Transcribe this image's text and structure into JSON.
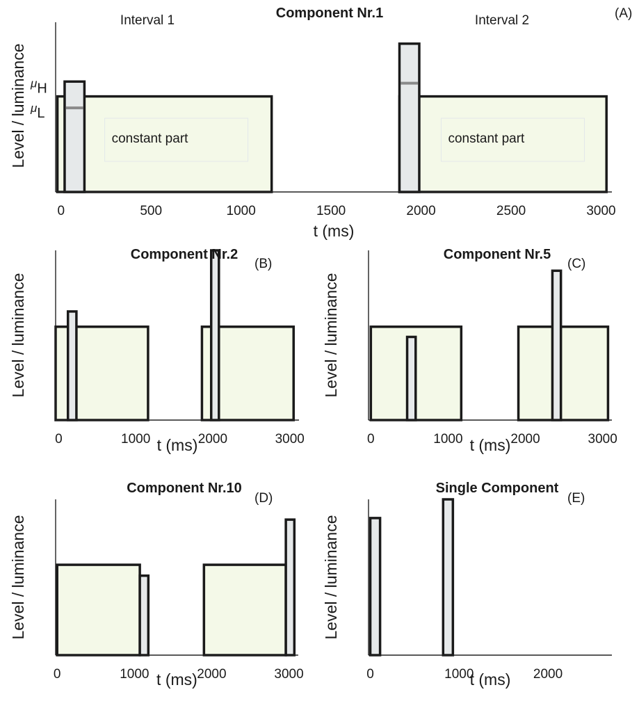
{
  "chart_data": [
    {
      "id": "A",
      "type": "bar",
      "title": "Component Nr.1",
      "panel_label": "(A)",
      "xlabel": "t (ms)",
      "ylabel": "Level / luminance",
      "xlim": [
        -30,
        3060
      ],
      "ylim": [
        0,
        1.03
      ],
      "xticks": [
        0,
        500,
        1000,
        1500,
        2000,
        2500,
        3000
      ],
      "interval_labels": [
        "Interval 1",
        "Interval 2"
      ],
      "constant_label": "constant part",
      "mu_labels": [
        {
          "sym": "μ",
          "sub": "H",
          "y": 0.66
        },
        {
          "sym": "μ",
          "sub": "L",
          "y": 0.51
        }
      ],
      "constant_parts": [
        {
          "start": -20,
          "end": 1170,
          "level": 0.58
        },
        {
          "start": 1880,
          "end": 3030,
          "level": 0.58
        }
      ],
      "pulses": [
        {
          "start": 20,
          "end": 130,
          "level": 0.67,
          "mark": 0.51
        },
        {
          "start": 1880,
          "end": 1990,
          "level": 0.9,
          "mark": 0.66
        }
      ]
    },
    {
      "id": "B",
      "type": "bar",
      "title": "Component Nr.2",
      "panel_label": "(B)",
      "xlabel": "t (ms)",
      "ylabel": "Level / luminance",
      "xlim": [
        -40,
        3120
      ],
      "ylim": [
        0,
        1.0
      ],
      "xticks": [
        0,
        1000,
        2000,
        3000
      ],
      "constant_parts": [
        {
          "start": -40,
          "end": 1160,
          "level": 0.55
        },
        {
          "start": 1860,
          "end": 3050,
          "level": 0.55
        }
      ],
      "pulses": [
        {
          "start": 120,
          "end": 230,
          "level": 0.64
        },
        {
          "start": 1980,
          "end": 2080,
          "level": 1.0
        }
      ]
    },
    {
      "id": "C",
      "type": "bar",
      "title": "Component Nr.5",
      "panel_label": "(C)",
      "xlabel": "t (ms)",
      "ylabel": "Level / luminance",
      "xlim": [
        -30,
        3120
      ],
      "ylim": [
        0,
        1.0
      ],
      "xticks": [
        0,
        1000,
        2000,
        3000
      ],
      "constant_parts": [
        {
          "start": 0,
          "end": 1170,
          "level": 0.55
        },
        {
          "start": 1910,
          "end": 3070,
          "level": 0.55
        }
      ],
      "pulses": [
        {
          "start": 470,
          "end": 580,
          "level": 0.49
        },
        {
          "start": 2350,
          "end": 2460,
          "level": 0.88
        }
      ]
    },
    {
      "id": "D",
      "type": "bar",
      "title": "Component Nr.10",
      "panel_label": "(D)",
      "xlabel": "t (ms)",
      "ylabel": "Level / luminance",
      "xlim": [
        -20,
        3130
      ],
      "ylim": [
        0,
        1.0
      ],
      "xticks": [
        0,
        1000,
        2000,
        3000
      ],
      "constant_parts": [
        {
          "start": 0,
          "end": 1070,
          "level": 0.58
        },
        {
          "start": 1900,
          "end": 2960,
          "level": 0.58
        }
      ],
      "pulses": [
        {
          "start": 1070,
          "end": 1180,
          "level": 0.51
        },
        {
          "start": 2960,
          "end": 3070,
          "level": 0.87
        }
      ]
    },
    {
      "id": "E",
      "type": "bar",
      "title": "Single Component",
      "panel_label": "(E)",
      "xlabel": "t (ms)",
      "ylabel": "Level / luminance",
      "xlim": [
        -20,
        2720
      ],
      "ylim": [
        0,
        1.0
      ],
      "xticks": [
        0,
        1000,
        2000
      ],
      "constant_parts": [],
      "pulses": [
        {
          "start": 0,
          "end": 110,
          "level": 0.88
        },
        {
          "start": 820,
          "end": 930,
          "level": 1.0
        }
      ]
    }
  ]
}
